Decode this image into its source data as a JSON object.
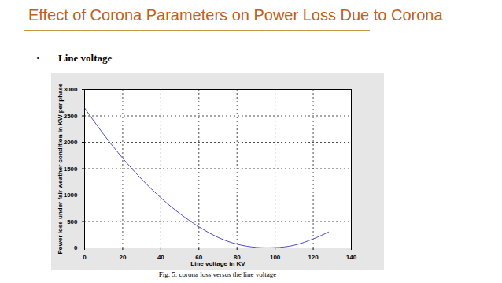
{
  "chart_data": {
    "type": "line",
    "title": "Effect of Corona Parameters on Power Loss Due to Corona",
    "subtitle": "Line voltage",
    "caption": "Fig. 5: corona loss versus the line voltage",
    "x_label": "Line voltage in KV",
    "y_label": "Power loss under fair weather condition in KW per phase",
    "x": [
      0,
      10,
      20,
      30,
      40,
      50,
      60,
      70,
      80,
      90,
      100,
      110,
      120,
      128
    ],
    "values": [
      2650,
      2150,
      1700,
      1300,
      950,
      650,
      400,
      200,
      70,
      10,
      5,
      50,
      170,
      300
    ],
    "color": "#4a4ad0",
    "xlim": [
      0,
      140
    ],
    "xticks": [
      0,
      20,
      40,
      60,
      80,
      100,
      120,
      140
    ],
    "ylim": [
      0,
      3000
    ],
    "yticks": [
      0,
      500,
      1000,
      1500,
      2000,
      2500,
      3000
    ],
    "grid": true
  }
}
